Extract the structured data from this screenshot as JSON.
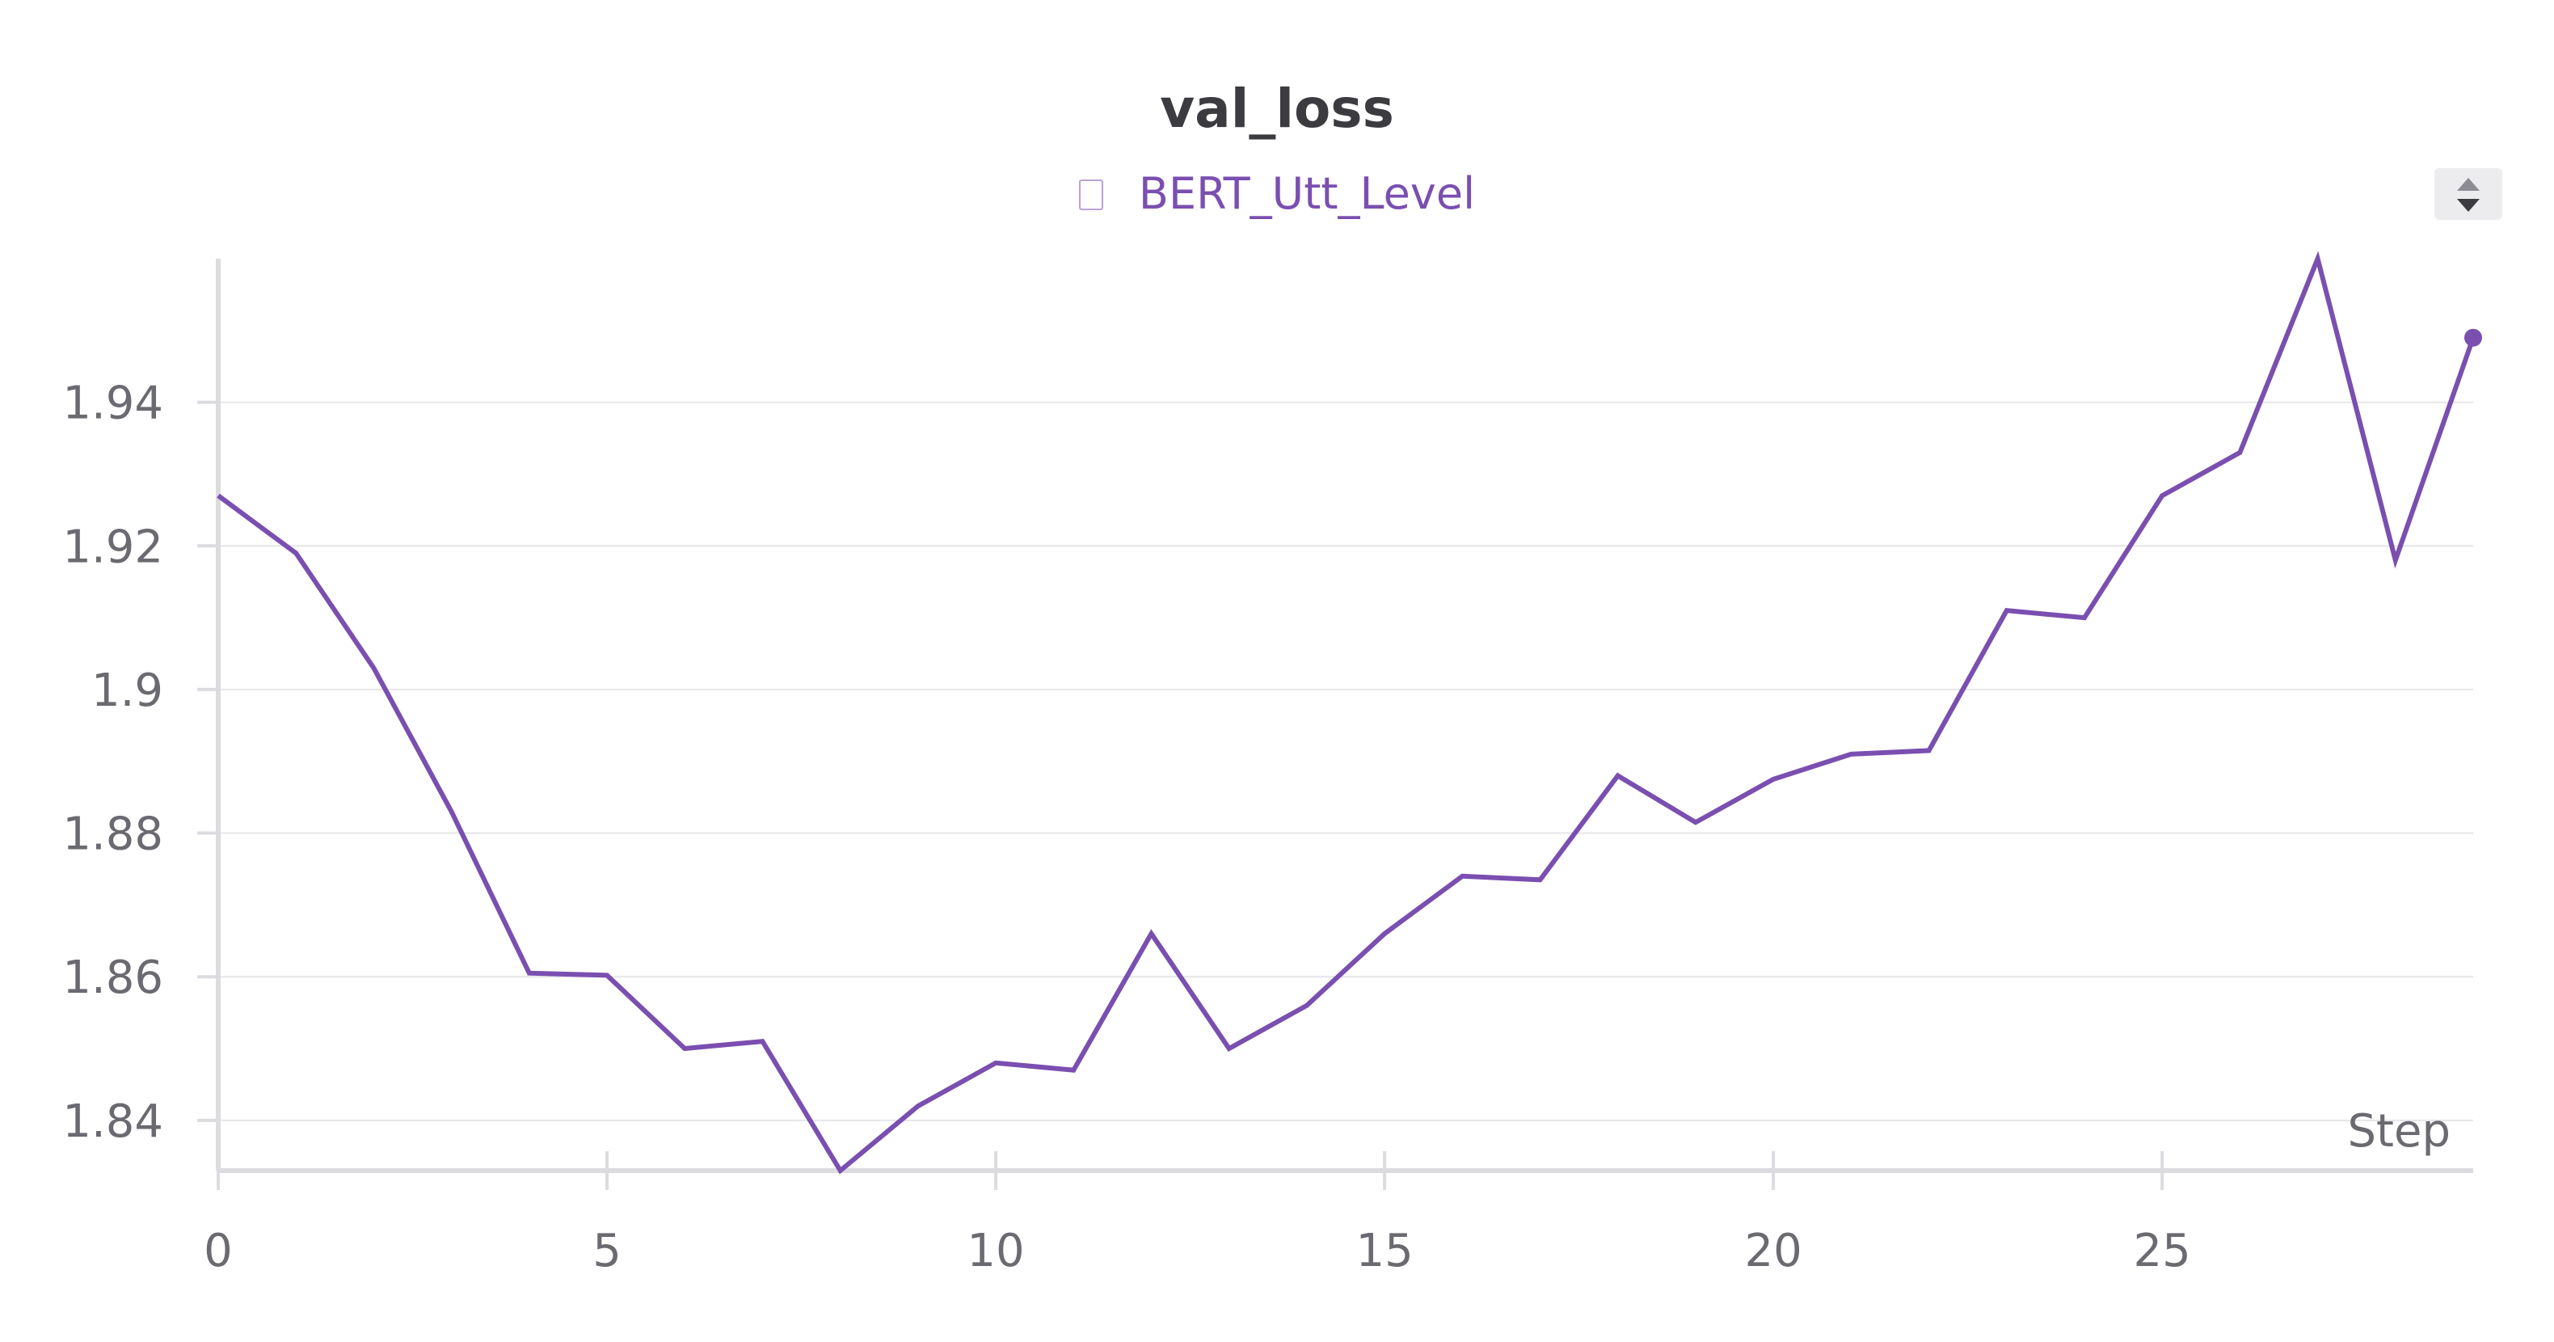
{
  "chart_data": {
    "type": "line",
    "title": "val_loss",
    "xlabel": "Step",
    "ylabel": "",
    "xlim": [
      0,
      29
    ],
    "ylim": [
      1.833,
      1.96
    ],
    "x_ticks": [
      0,
      5,
      10,
      15,
      20,
      25
    ],
    "y_ticks": [
      1.84,
      1.86,
      1.88,
      1.9,
      1.92,
      1.94
    ],
    "y_tick_labels": [
      "1.84",
      "1.86",
      "1.88",
      "1.9",
      "1.92",
      "1.94"
    ],
    "grid": true,
    "legend_position": "top-center",
    "series": [
      {
        "name": "BERT_Utt_Level",
        "color": "#7a4fb0",
        "x": [
          0,
          1,
          2,
          3,
          4,
          5,
          6,
          7,
          8,
          9,
          10,
          11,
          12,
          13,
          14,
          15,
          16,
          17,
          18,
          19,
          20,
          21,
          22,
          23,
          24,
          25,
          26,
          27,
          28,
          29
        ],
        "values": [
          1.927,
          1.919,
          1.903,
          1.883,
          1.8605,
          1.8602,
          1.85,
          1.851,
          1.833,
          1.842,
          1.848,
          1.847,
          1.866,
          1.85,
          1.856,
          1.866,
          1.874,
          1.8735,
          1.888,
          1.8815,
          1.8875,
          1.891,
          1.8915,
          1.911,
          1.91,
          1.927,
          1.933,
          1.96,
          1.918,
          1.949
        ]
      }
    ]
  },
  "ui": {
    "scroll_control_icon": "up-down-caret-icon",
    "legend_icon": "series-swatch-icon"
  }
}
